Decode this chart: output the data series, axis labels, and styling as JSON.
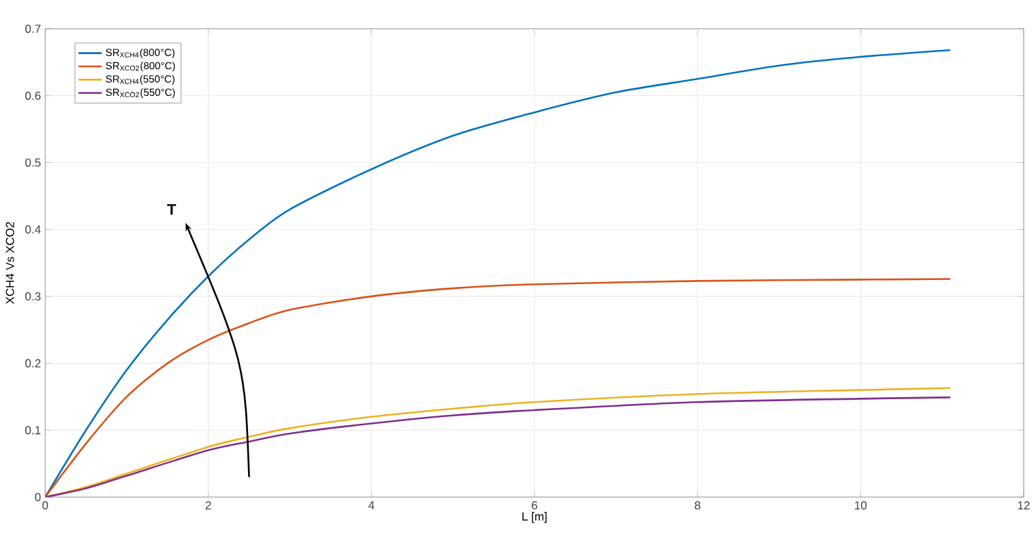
{
  "chart_data": {
    "type": "line",
    "xlabel": "L [m]",
    "ylabel": "XCH4 Vs XCO2",
    "xlim": [
      0,
      12
    ],
    "xticks": [
      0,
      2,
      4,
      6,
      8,
      10,
      12
    ],
    "ylim": [
      0,
      0.7
    ],
    "yticks": [
      0,
      0.1,
      0.2,
      0.3,
      0.4,
      0.5,
      0.6,
      0.7
    ],
    "grid": true,
    "legend": "top left",
    "line_style": "solid",
    "marker": "none",
    "annotations": [
      "T"
    ],
    "series": [
      {
        "name": "SR$_{XCH4}$(800°C)",
        "color": "#0072bd",
        "x": [
          0,
          0.5,
          1,
          1.5,
          2,
          2.5,
          3,
          4,
          5,
          6,
          7,
          8,
          9,
          10,
          11.1
        ],
        "values": [
          0,
          0.1,
          0.19,
          0.265,
          0.33,
          0.385,
          0.43,
          0.49,
          0.54,
          0.575,
          0.605,
          0.625,
          0.645,
          0.658,
          0.668
        ]
      },
      {
        "name": "SR$_{XCO2}$(800°C)",
        "color": "#d95319",
        "x": [
          0,
          0.5,
          1,
          1.5,
          2,
          2.5,
          3,
          4,
          5,
          6,
          8,
          10,
          11.1
        ],
        "values": [
          0,
          0.08,
          0.15,
          0.2,
          0.235,
          0.26,
          0.28,
          0.3,
          0.312,
          0.318,
          0.323,
          0.325,
          0.326
        ]
      },
      {
        "name": "SR$_{XCH4}$(550°C)",
        "color": "#edb120",
        "x": [
          0,
          0.5,
          1,
          2,
          2.5,
          3,
          4,
          5,
          6,
          8,
          10,
          11.1
        ],
        "values": [
          0,
          0.015,
          0.035,
          0.075,
          0.09,
          0.103,
          0.12,
          0.132,
          0.142,
          0.154,
          0.16,
          0.163
        ]
      },
      {
        "name": "SR$_{XCO2}$(550°C)",
        "color": "#7e2f8e",
        "x": [
          0,
          0.5,
          1,
          2,
          2.5,
          3,
          4,
          5,
          6,
          8,
          10,
          11.1
        ],
        "values": [
          0,
          0.013,
          0.032,
          0.07,
          0.083,
          0.095,
          0.11,
          0.122,
          0.13,
          0.142,
          0.147,
          0.149
        ]
      }
    ]
  }
}
